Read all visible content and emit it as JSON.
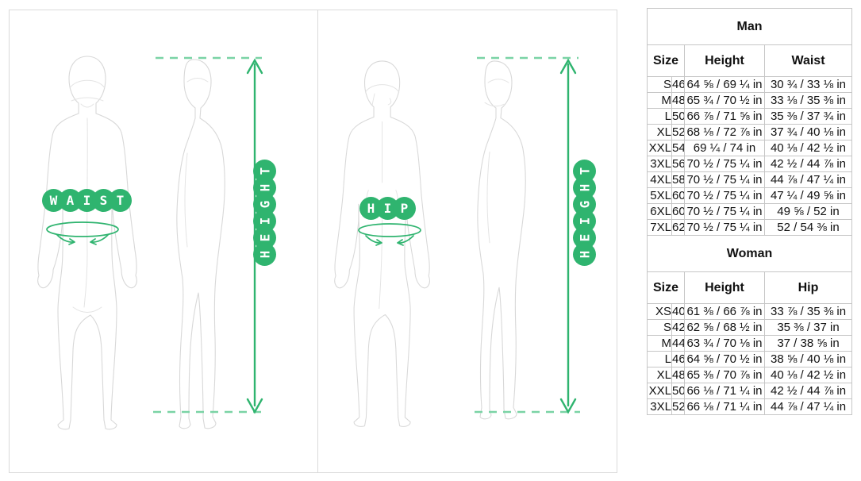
{
  "labels": {
    "waist": "WAIST",
    "hip": "HIP",
    "height": "HEIGHT"
  },
  "colors": {
    "accent_green": "#2fb46f",
    "dash_green": "#7ad3a5",
    "figure_line_gray": "#d8d8d8",
    "table_border_gray": "#c6c6c6"
  },
  "tables": [
    {
      "title": "Man",
      "columns": [
        "Size",
        "Height",
        "Waist"
      ],
      "rows": [
        [
          "S",
          "46",
          "64 ⅝ / 69 ¼ in",
          "30 ¾ / 33 ⅛ in"
        ],
        [
          "M",
          "48",
          "65 ¾ / 70 ½ in",
          "33 ⅛ / 35 ⅜ in"
        ],
        [
          "L",
          "50",
          "66 ⅞ / 71 ⅝ in",
          "35 ⅜ / 37 ¾ in"
        ],
        [
          "XL",
          "52",
          "68 ⅛ / 72 ⅞ in",
          "37 ¾ / 40 ⅛ in"
        ],
        [
          "XXL",
          "54",
          "69 ¼ / 74 in",
          "40 ⅛ / 42 ½ in"
        ],
        [
          "3XL",
          "56",
          "70 ½ / 75 ¼ in",
          "42 ½ / 44 ⅞ in"
        ],
        [
          "4XL",
          "58",
          "70 ½ / 75 ¼ in",
          "44 ⅞ / 47 ¼ in"
        ],
        [
          "5XL",
          "60",
          "70 ½ / 75 ¼ in",
          "47 ¼ / 49 ⅝ in"
        ],
        [
          "6XL",
          "60",
          "70 ½ / 75 ¼ in",
          "49 ⅝ / 52 in"
        ],
        [
          "7XL",
          "62",
          "70 ½ / 75 ¼ in",
          "52 / 54 ⅜ in"
        ]
      ]
    },
    {
      "title": "Woman",
      "columns": [
        "Size",
        "Height",
        "Hip"
      ],
      "rows": [
        [
          "XS",
          "40",
          "61 ⅜ / 66 ⅞ in",
          "33 ⅞ / 35 ⅜ in"
        ],
        [
          "S",
          "42",
          "62 ⅝ / 68 ½ in",
          "35 ⅜ / 37 in"
        ],
        [
          "M",
          "44",
          "63 ¾ / 70 ⅛ in",
          "37 / 38 ⅝ in"
        ],
        [
          "L",
          "46",
          "64 ⅝ / 70 ½ in",
          "38 ⅝ / 40 ⅛ in"
        ],
        [
          "XL",
          "48",
          "65 ⅜ / 70 ⅞ in",
          "40 ⅛ / 42 ½ in"
        ],
        [
          "XXL",
          "50",
          "66 ⅛ / 71 ¼ in",
          "42 ½ / 44 ⅞ in"
        ],
        [
          "3XL",
          "52",
          "66 ⅛ / 71 ¼ in",
          "44 ⅞ / 47 ¼ in"
        ]
      ]
    }
  ]
}
